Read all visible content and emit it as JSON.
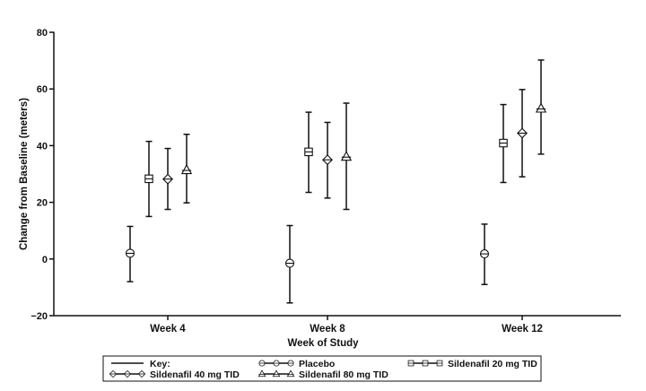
{
  "chart_data": {
    "type": "scatter",
    "xlabel": "Week of Study",
    "ylabel": "Change from Baseline (meters)",
    "categories": [
      "Week 4",
      "Week 8",
      "Week 12"
    ],
    "ylim": [
      -20,
      80
    ],
    "yticks": [
      -20,
      0,
      20,
      40,
      60,
      80
    ],
    "ytick_labels": [
      "−20",
      "0",
      "20",
      "40",
      "60",
      "80"
    ],
    "legend_title": "Key:",
    "legend_position": "bottom",
    "series": [
      {
        "name": "Placebo",
        "marker": "circle",
        "values": [
          2,
          -1.5,
          1.8
        ],
        "lower": [
          -8,
          -15.5,
          -9
        ],
        "upper": [
          11.5,
          11.8,
          12.3
        ]
      },
      {
        "name": "Sildenafil 20 mg TID",
        "marker": "square",
        "values": [
          28.3,
          37.8,
          40.9
        ],
        "lower": [
          15,
          23.5,
          27
        ],
        "upper": [
          41.5,
          51.8,
          54.5
        ]
      },
      {
        "name": "Sildenafil 40 mg TID",
        "marker": "diamond",
        "values": [
          28.2,
          35,
          44.4
        ],
        "lower": [
          17.5,
          21.5,
          29
        ],
        "upper": [
          39,
          48.2,
          59.8
        ]
      },
      {
        "name": "Sildenafil 80 mg TID",
        "marker": "triangle",
        "values": [
          31.4,
          36.1,
          53.1
        ],
        "lower": [
          19.8,
          17.5,
          37
        ],
        "upper": [
          44,
          55,
          70.2
        ]
      }
    ]
  }
}
